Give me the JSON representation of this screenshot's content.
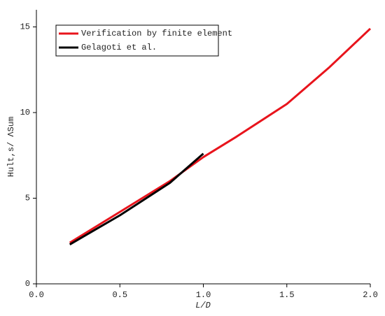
{
  "chart_data": {
    "type": "line",
    "x_label": "L/D",
    "y_label": "Hult,s/ ΛSum",
    "x": [
      0.2,
      0.5,
      0.8,
      1.0,
      1.2,
      1.5,
      1.75,
      2.0
    ],
    "series": [
      {
        "name": "Verification by finite element",
        "color": "#e8141c",
        "values": [
          2.4,
          4.2,
          6.0,
          7.4,
          8.6,
          10.5,
          12.6,
          14.9
        ]
      },
      {
        "name": "Gelagoti et al.",
        "color": "#000000",
        "values": [
          2.3,
          4.0,
          5.9,
          7.6,
          null,
          null,
          null,
          null
        ]
      }
    ],
    "xlim": [
      0,
      2
    ],
    "ylim": [
      0,
      16
    ],
    "xticks": [
      {
        "value": 0,
        "label": "0.0"
      },
      {
        "value": 0.5,
        "label": "0.5"
      },
      {
        "value": 1,
        "label": "1.0"
      },
      {
        "value": 1.5,
        "label": "1.5"
      },
      {
        "value": 2,
        "label": "2.0"
      }
    ],
    "yticks": [
      0,
      5,
      10,
      15
    ],
    "grid": false,
    "legend": "upper-left"
  }
}
